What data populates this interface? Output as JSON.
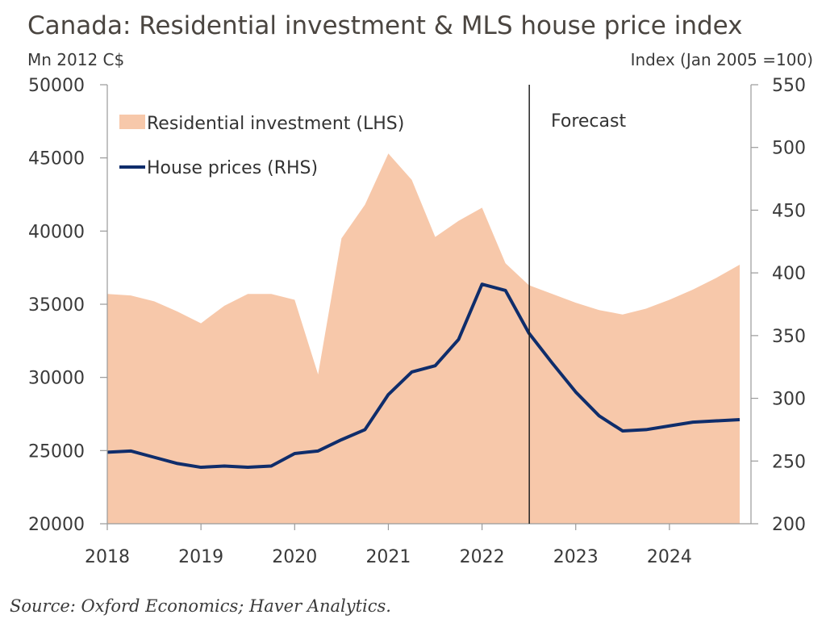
{
  "chart_data": {
    "type": "area",
    "title": "Canada: Residential investment & MLS house price index",
    "ylabel": "Mn 2012 C$",
    "y2label": "Index (Jan 2005 =100)",
    "source": "Source: Oxford Economics; Haver Analytics.",
    "forecast_label": "Forecast",
    "forecast_start": 2022.5,
    "x_ticks": [
      2018,
      2019,
      2020,
      2021,
      2022,
      2023,
      2024
    ],
    "xlim": [
      2018,
      2024.75
    ],
    "ylim": [
      20000,
      50000
    ],
    "y_ticks": [
      20000,
      25000,
      30000,
      35000,
      40000,
      45000,
      50000
    ],
    "y2lim": [
      200,
      550
    ],
    "y2_ticks": [
      200,
      250,
      300,
      350,
      400,
      450,
      500,
      550
    ],
    "legend_position": "top-left",
    "grid": false,
    "colors": {
      "area": "#f7c8aa",
      "line": "#0f2d6b"
    },
    "series": [
      {
        "name": "Residential investment (LHS)",
        "axis": "left",
        "type": "area",
        "x": [
          2018.0,
          2018.25,
          2018.5,
          2018.75,
          2019.0,
          2019.25,
          2019.5,
          2019.75,
          2020.0,
          2020.25,
          2020.5,
          2020.75,
          2021.0,
          2021.25,
          2021.5,
          2021.75,
          2022.0,
          2022.25,
          2022.5,
          2022.75,
          2023.0,
          2023.25,
          2023.5,
          2023.75,
          2024.0,
          2024.25,
          2024.5,
          2024.75
        ],
        "values": [
          35700,
          35600,
          35200,
          34500,
          33700,
          34900,
          35700,
          35700,
          35300,
          30200,
          39500,
          41800,
          45300,
          43500,
          39600,
          40700,
          41600,
          37800,
          36300,
          35700,
          35100,
          34600,
          34300,
          34700,
          35300,
          36000,
          36800,
          37700
        ]
      },
      {
        "name": "House prices (RHS)",
        "axis": "right",
        "type": "line",
        "x": [
          2018.0,
          2018.25,
          2018.5,
          2018.75,
          2019.0,
          2019.25,
          2019.5,
          2019.75,
          2020.0,
          2020.25,
          2020.5,
          2020.75,
          2021.0,
          2021.25,
          2021.5,
          2021.75,
          2022.0,
          2022.25,
          2022.5,
          2022.75,
          2023.0,
          2023.25,
          2023.5,
          2023.75,
          2024.0,
          2024.25,
          2024.5,
          2024.75
        ],
        "values": [
          257,
          258,
          253,
          248,
          245,
          246,
          245,
          246,
          256,
          258,
          267,
          275,
          303,
          321,
          326,
          347,
          391,
          386,
          352,
          328,
          305,
          286,
          274,
          275,
          278,
          281,
          282,
          283
        ]
      }
    ]
  }
}
